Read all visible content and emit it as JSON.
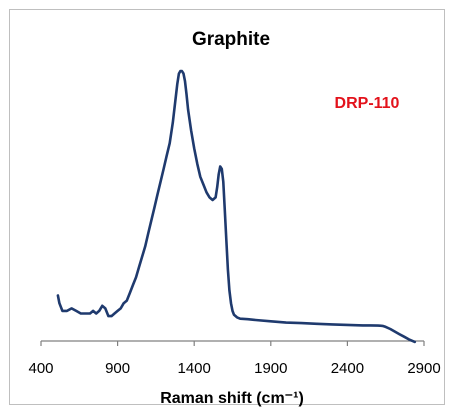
{
  "chart_data": {
    "type": "line",
    "title": "Graphite",
    "annotation": "DRP-110",
    "xlabel": "Raman shift (cm⁻¹)",
    "ylabel": "",
    "xlim": [
      400,
      2900
    ],
    "x_ticks": [
      400,
      900,
      1400,
      1900,
      2400,
      2900
    ],
    "y_ticks_shown": false,
    "grid": false,
    "legend": "none",
    "colors": {
      "line": "#1f3a6e",
      "annotation": "#e3121b",
      "axis": "#808080",
      "text": "#000000"
    },
    "series": [
      {
        "x": [
          510,
          520,
          540,
          570,
          600,
          630,
          660,
          690,
          720,
          740,
          760,
          780,
          800,
          820,
          840,
          860,
          880,
          900,
          920,
          940,
          960,
          980,
          1000,
          1020,
          1040,
          1060,
          1080,
          1100,
          1120,
          1140,
          1160,
          1180,
          1200,
          1220,
          1240,
          1260,
          1280,
          1290,
          1300,
          1310,
          1320,
          1330,
          1340,
          1350,
          1360,
          1380,
          1400,
          1420,
          1440,
          1460,
          1480,
          1500,
          1520,
          1540,
          1550,
          1560,
          1570,
          1580,
          1590,
          1600,
          1610,
          1620,
          1630,
          1640,
          1650,
          1660,
          1680,
          1700,
          1750,
          1800,
          1900,
          2000,
          2100,
          2200,
          2300,
          2400,
          2500,
          2550,
          2600,
          2630,
          2650,
          2680,
          2710,
          2740,
          2770,
          2800,
          2840
        ],
        "y": [
          0.13,
          0.1,
          0.07,
          0.07,
          0.08,
          0.07,
          0.06,
          0.06,
          0.06,
          0.07,
          0.06,
          0.07,
          0.09,
          0.08,
          0.05,
          0.05,
          0.06,
          0.07,
          0.08,
          0.1,
          0.11,
          0.14,
          0.17,
          0.2,
          0.24,
          0.28,
          0.32,
          0.37,
          0.42,
          0.47,
          0.52,
          0.57,
          0.62,
          0.67,
          0.72,
          0.8,
          0.9,
          0.95,
          0.99,
          1.0,
          1.0,
          0.99,
          0.96,
          0.91,
          0.85,
          0.77,
          0.7,
          0.64,
          0.59,
          0.56,
          0.53,
          0.51,
          0.5,
          0.51,
          0.55,
          0.6,
          0.63,
          0.62,
          0.57,
          0.46,
          0.34,
          0.23,
          0.15,
          0.1,
          0.07,
          0.055,
          0.045,
          0.04,
          0.038,
          0.035,
          0.03,
          0.025,
          0.023,
          0.02,
          0.018,
          0.016,
          0.014,
          0.014,
          0.013,
          0.012,
          0.008,
          0.0,
          -0.01,
          -0.02,
          -0.03,
          -0.04,
          -0.05
        ]
      }
    ]
  }
}
